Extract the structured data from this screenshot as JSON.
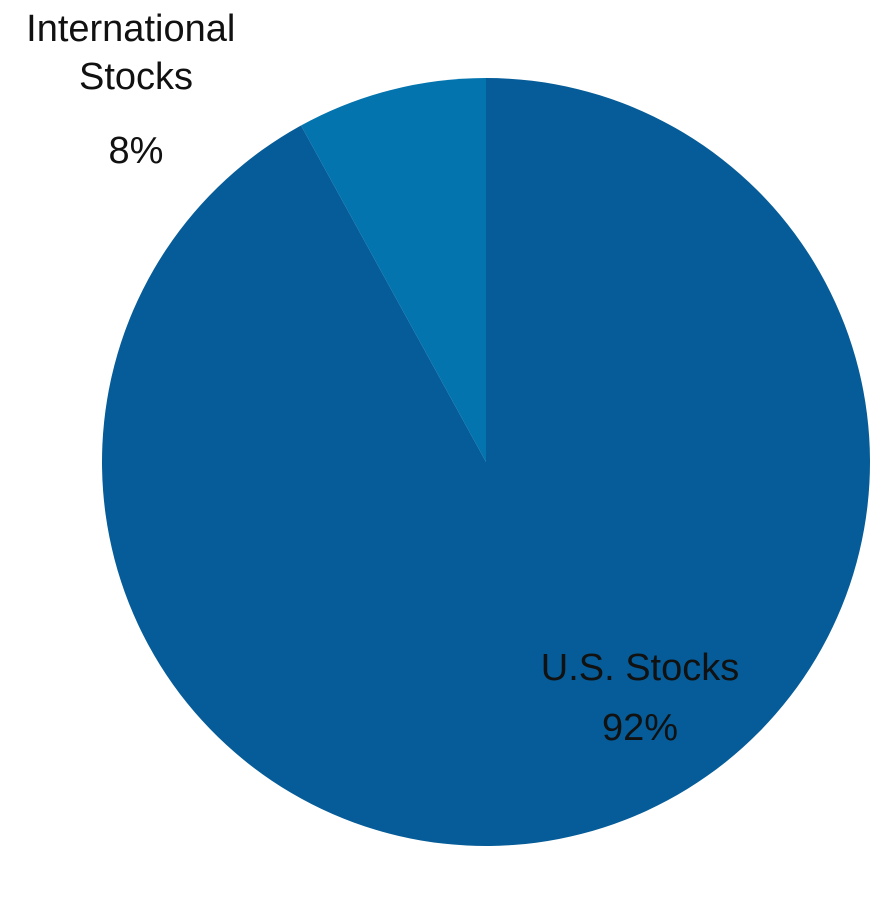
{
  "chart_data": {
    "type": "pie",
    "start_angle_deg": 0,
    "direction": "clockwise",
    "slices": [
      {
        "label": "U.S. Stocks",
        "value": 92,
        "value_label": "92%",
        "color": "#055c98"
      },
      {
        "label": "International Stocks",
        "value": 8,
        "value_label": "8%",
        "color": "#0474ae"
      }
    ],
    "legend": "none"
  }
}
